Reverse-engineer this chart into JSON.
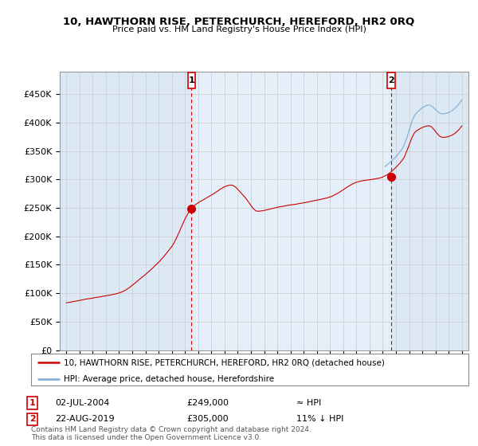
{
  "title": "10, HAWTHORN RISE, PETERCHURCH, HEREFORD, HR2 0RQ",
  "subtitle": "Price paid vs. HM Land Registry's House Price Index (HPI)",
  "ylabel_ticks": [
    "£0",
    "£50K",
    "£100K",
    "£150K",
    "£200K",
    "£250K",
    "£300K",
    "£350K",
    "£400K",
    "£450K"
  ],
  "ytick_values": [
    0,
    50000,
    100000,
    150000,
    200000,
    250000,
    300000,
    350000,
    400000,
    450000
  ],
  "ylim": [
    0,
    490000
  ],
  "xlim_start": 1994.5,
  "xlim_end": 2025.5,
  "sale1_x": 2004.5,
  "sale1_y": 249000,
  "sale1_label": "1",
  "sale1_date": "02-JUL-2004",
  "sale1_price": "£249,000",
  "sale1_hpi": "≈ HPI",
  "sale2_x": 2019.65,
  "sale2_y": 305000,
  "sale2_label": "2",
  "sale2_date": "22-AUG-2019",
  "sale2_price": "£305,000",
  "sale2_hpi": "11% ↓ HPI",
  "legend_line1": "10, HAWTHORN RISE, PETERCHURCH, HEREFORD, HR2 0RQ (detached house)",
  "legend_line2": "HPI: Average price, detached house, Herefordshire",
  "footer": "Contains HM Land Registry data © Crown copyright and database right 2024.\nThis data is licensed under the Open Government Licence v3.0.",
  "line_color": "#cc0000",
  "hpi_color": "#7dadd4",
  "bg_plot_color": "#dce9f5",
  "background_color": "#ffffff",
  "grid_color": "#cccccc"
}
